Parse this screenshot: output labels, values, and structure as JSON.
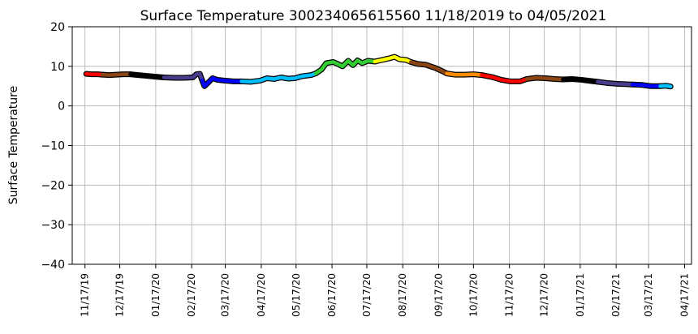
{
  "chart_data": {
    "type": "line",
    "title": "Surface Temperature 300234065615560  11/18/2019 to 04/05/2021",
    "xlabel": "",
    "ylabel": "Surface Temperature",
    "ylim": [
      -40,
      20
    ],
    "yticks": [
      -40,
      -30,
      -20,
      -10,
      0,
      10,
      20
    ],
    "xlim": [
      "2019-11-06",
      "2021-04-23"
    ],
    "xticks": [
      "2019-11-17",
      "2019-12-17",
      "2020-01-17",
      "2020-02-17",
      "2020-03-17",
      "2020-04-17",
      "2020-05-17",
      "2020-06-17",
      "2020-07-17",
      "2020-08-17",
      "2020-09-17",
      "2020-10-17",
      "2020-11-17",
      "2020-12-17",
      "2021-01-17",
      "2021-02-17",
      "2021-03-17",
      "2021-04-17"
    ],
    "xtick_labels": [
      "11/17/19",
      "12/17/19",
      "01/17/20",
      "02/17/20",
      "03/17/20",
      "04/17/20",
      "05/17/20",
      "06/17/20",
      "07/17/20",
      "08/17/20",
      "09/17/20",
      "10/17/20",
      "11/17/20",
      "12/17/20",
      "01/17/21",
      "02/17/21",
      "03/17/21",
      "04/17/21"
    ],
    "grid": true,
    "series": [
      {
        "color": "#ff0000",
        "points": [
          [
            "2019-11-18",
            8.1
          ],
          [
            "2019-11-23",
            8.0
          ],
          [
            "2019-11-28",
            8.0
          ],
          [
            "2019-12-02",
            7.9
          ]
        ]
      },
      {
        "color": "#8b4513",
        "points": [
          [
            "2019-12-02",
            7.9
          ],
          [
            "2019-12-08",
            7.8
          ],
          [
            "2019-12-14",
            7.9
          ],
          [
            "2019-12-20",
            8.0
          ],
          [
            "2019-12-26",
            8.0
          ]
        ]
      },
      {
        "color": "#000000",
        "points": [
          [
            "2019-12-26",
            8.0
          ],
          [
            "2020-01-02",
            7.8
          ],
          [
            "2020-01-09",
            7.6
          ],
          [
            "2020-01-16",
            7.4
          ],
          [
            "2020-01-24",
            7.2
          ]
        ]
      },
      {
        "color": "#483d8b",
        "points": [
          [
            "2020-01-24",
            7.2
          ],
          [
            "2020-02-02",
            7.1
          ],
          [
            "2020-02-10",
            7.1
          ],
          [
            "2020-02-18",
            7.2
          ],
          [
            "2020-02-21",
            8.0
          ],
          [
            "2020-02-24",
            8.1
          ],
          [
            "2020-02-26",
            6.5
          ]
        ]
      },
      {
        "color": "#0000ff",
        "points": [
          [
            "2020-02-26",
            6.5
          ],
          [
            "2020-02-28",
            5.0
          ],
          [
            "2020-03-02",
            5.8
          ],
          [
            "2020-03-06",
            7.0
          ],
          [
            "2020-03-10",
            6.6
          ],
          [
            "2020-03-16",
            6.4
          ],
          [
            "2020-03-24",
            6.2
          ],
          [
            "2020-03-31",
            6.2
          ]
        ]
      },
      {
        "color": "#00bfff",
        "points": [
          [
            "2020-03-31",
            6.2
          ],
          [
            "2020-04-08",
            6.1
          ],
          [
            "2020-04-16",
            6.4
          ],
          [
            "2020-04-22",
            7.0
          ],
          [
            "2020-04-28",
            6.8
          ],
          [
            "2020-05-04",
            7.2
          ],
          [
            "2020-05-10",
            6.9
          ],
          [
            "2020-05-16",
            7.0
          ],
          [
            "2020-05-22",
            7.5
          ],
          [
            "2020-05-30",
            7.8
          ],
          [
            "2020-06-03",
            8.2
          ]
        ]
      },
      {
        "color": "#32cd32",
        "points": [
          [
            "2020-06-03",
            8.2
          ],
          [
            "2020-06-08",
            9.2
          ],
          [
            "2020-06-12",
            10.8
          ],
          [
            "2020-06-18",
            11.1
          ],
          [
            "2020-06-22",
            10.6
          ],
          [
            "2020-06-26",
            10.0
          ],
          [
            "2020-07-01",
            11.4
          ],
          [
            "2020-07-05",
            10.3
          ],
          [
            "2020-07-09",
            11.5
          ],
          [
            "2020-07-13",
            10.8
          ],
          [
            "2020-07-18",
            11.4
          ],
          [
            "2020-07-24",
            11.2
          ]
        ]
      },
      {
        "color": "#ffff00",
        "points": [
          [
            "2020-07-24",
            11.2
          ],
          [
            "2020-07-30",
            11.6
          ],
          [
            "2020-08-05",
            12.0
          ],
          [
            "2020-08-10",
            12.4
          ],
          [
            "2020-08-14",
            11.8
          ],
          [
            "2020-08-20",
            11.6
          ],
          [
            "2020-08-24",
            11.1
          ]
        ]
      },
      {
        "color": "#8b4513",
        "points": [
          [
            "2020-08-24",
            11.1
          ],
          [
            "2020-08-30",
            10.6
          ],
          [
            "2020-09-06",
            10.4
          ],
          [
            "2020-09-14",
            9.6
          ],
          [
            "2020-09-20",
            8.8
          ],
          [
            "2020-09-24",
            8.2
          ]
        ]
      },
      {
        "color": "#ff8c00",
        "points": [
          [
            "2020-09-24",
            8.2
          ],
          [
            "2020-10-01",
            7.9
          ],
          [
            "2020-10-09",
            7.9
          ],
          [
            "2020-10-17",
            8.0
          ],
          [
            "2020-10-24",
            7.8
          ]
        ]
      },
      {
        "color": "#ff0000",
        "points": [
          [
            "2020-10-24",
            7.8
          ],
          [
            "2020-11-02",
            7.3
          ],
          [
            "2020-11-10",
            6.6
          ],
          [
            "2020-11-18",
            6.2
          ],
          [
            "2020-11-26",
            6.2
          ],
          [
            "2020-12-02",
            6.8
          ]
        ]
      },
      {
        "color": "#8b4513",
        "points": [
          [
            "2020-12-02",
            6.8
          ],
          [
            "2020-12-10",
            7.1
          ],
          [
            "2020-12-18",
            7.0
          ],
          [
            "2020-12-26",
            6.8
          ],
          [
            "2021-01-02",
            6.7
          ]
        ]
      },
      {
        "color": "#000000",
        "points": [
          [
            "2021-01-02",
            6.7
          ],
          [
            "2021-01-10",
            6.8
          ],
          [
            "2021-01-18",
            6.6
          ],
          [
            "2021-01-26",
            6.3
          ],
          [
            "2021-02-01",
            6.1
          ]
        ]
      },
      {
        "color": "#483d8b",
        "points": [
          [
            "2021-02-01",
            6.1
          ],
          [
            "2021-02-09",
            5.8
          ],
          [
            "2021-02-17",
            5.6
          ],
          [
            "2021-02-25",
            5.5
          ],
          [
            "2021-03-03",
            5.4
          ]
        ]
      },
      {
        "color": "#0000ff",
        "points": [
          [
            "2021-03-03",
            5.4
          ],
          [
            "2021-03-11",
            5.3
          ],
          [
            "2021-03-19",
            5.0
          ],
          [
            "2021-03-27",
            5.0
          ]
        ]
      },
      {
        "color": "#00bfff",
        "points": [
          [
            "2021-03-27",
            5.0
          ],
          [
            "2021-04-01",
            5.1
          ],
          [
            "2021-04-05",
            4.9
          ]
        ]
      }
    ]
  }
}
